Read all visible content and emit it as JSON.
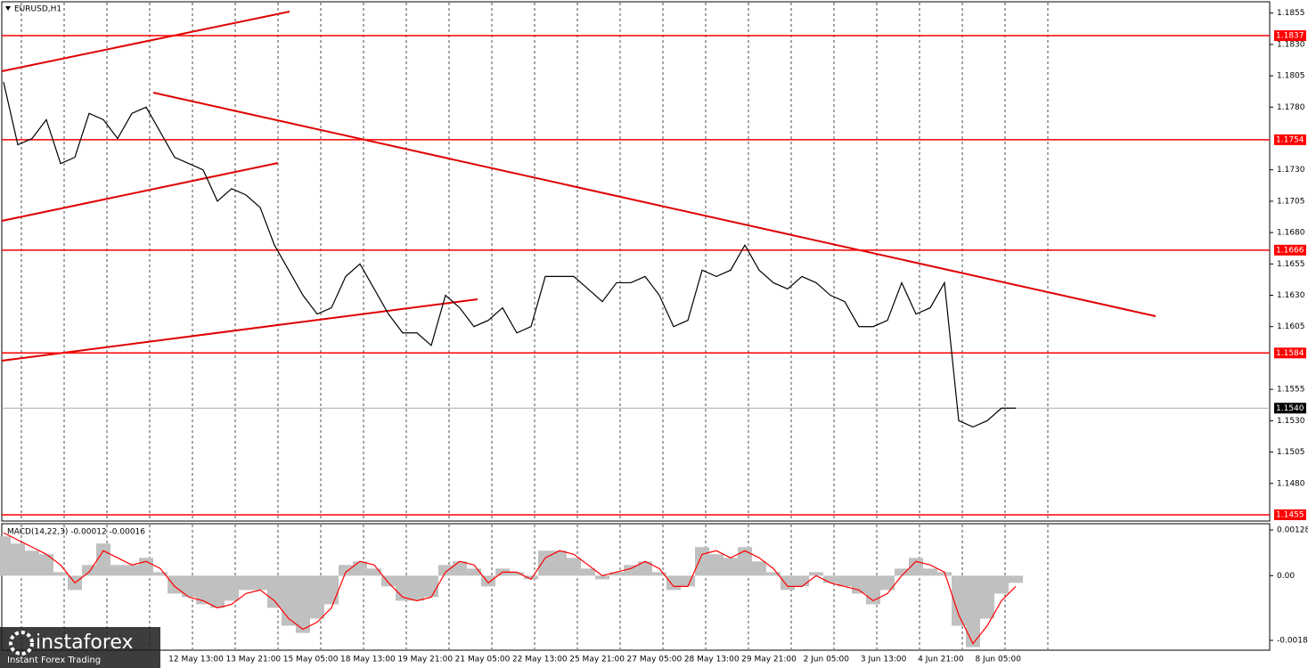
{
  "chart_data": [
    {
      "type": "line",
      "title": "EURUSD,H1",
      "color": "#000000",
      "values": [
        1.18,
        1.175,
        1.1755,
        1.177,
        1.1735,
        1.174,
        1.1775,
        1.177,
        1.1755,
        1.1775,
        1.178,
        1.176,
        1.174,
        1.1735,
        1.173,
        1.1705,
        1.1715,
        1.171,
        1.17,
        1.167,
        1.165,
        1.163,
        1.1615,
        1.162,
        1.1645,
        1.1655,
        1.1635,
        1.1615,
        1.16,
        1.16,
        1.159,
        1.163,
        1.162,
        1.1605,
        1.161,
        1.162,
        1.16,
        1.1605,
        1.1645,
        1.1645,
        1.1645,
        1.1635,
        1.1625,
        1.164,
        1.164,
        1.1645,
        1.163,
        1.1605,
        1.161,
        1.165,
        1.1645,
        1.165,
        1.167,
        1.165,
        1.164,
        1.1635,
        1.1645,
        1.164,
        1.163,
        1.1625,
        1.1605,
        1.1605,
        1.161,
        1.164,
        1.1615,
        1.162,
        1.164,
        1.153,
        1.1525,
        1.153,
        1.154,
        1.154
      ],
      "x_labels": [
        "12 May 13:00",
        "13 May 21:00",
        "15 May 05:00",
        "18 May 13:00",
        "19 May 21:00",
        "21 May 05:00",
        "22 May 13:00",
        "25 May 21:00",
        "27 May 05:00",
        "28 May 13:00",
        "29 May 21:00",
        "2 Jun 05:00",
        "3 Jun 13:00",
        "4 Jun 21:00",
        "8 Jun 05:00"
      ],
      "ylim": [
        1.145,
        1.1864
      ],
      "yticks": [
        1.1855,
        {
          "value": 1.183,
          "label": "1.1830"
        },
        1.1805,
        {
          "value": 1.178,
          "label": "1.1780"
        },
        {
          "value": 1.173,
          "label": "1.1730"
        },
        1.1705,
        {
          "value": 1.168,
          "label": "1.1680"
        },
        1.1655,
        {
          "value": 1.163,
          "label": "1.1630"
        },
        1.1605,
        1.1555,
        {
          "value": 1.153,
          "label": "1.1530"
        },
        1.1505,
        {
          "value": 1.148,
          "label": "1.1480"
        }
      ],
      "levels": [
        1.1837,
        1.1754,
        1.1666,
        1.1584,
        1.1455
      ],
      "level_color": "#ff0000",
      "last_price": {
        "value": 1.154,
        "label": "1.1540"
      },
      "grid": true
    },
    {
      "type": "bar",
      "title": "MACD(14,22,3) -0.00012 -0.00016",
      "color": "#c0c0c0",
      "values": [
        0.0011,
        0.0009,
        0.0007,
        0.0006,
        0.0001,
        -0.0004,
        0.0003,
        0.0009,
        0.0003,
        0.0003,
        0.0005,
        0.0001,
        -0.0005,
        -0.0006,
        -0.0008,
        -0.0009,
        -0.0007,
        -0.0004,
        -0.0004,
        -0.0009,
        -0.0014,
        -0.0016,
        -0.0012,
        -0.0008,
        0.0003,
        0.0004,
        0.0002,
        -0.0003,
        -0.0007,
        -0.0007,
        -0.0006,
        0.0003,
        0.0004,
        0.0002,
        -0.0003,
        0.0002,
        0.0001,
        -0.0001,
        0.0007,
        0.0007,
        0.0005,
        0.0002,
        -0.0001,
        0.0001,
        0.0003,
        0.0004,
        0.0001,
        -0.0004,
        -0.0003,
        0.0008,
        0.0006,
        0.0005,
        0.0008,
        0.0004,
        0.0001,
        -0.0004,
        -0.0003,
        0.0001,
        -0.0002,
        -0.0003,
        -0.0005,
        -0.0008,
        -0.0004,
        0.0002,
        0.0005,
        0.0002,
        0.0001,
        -0.0014,
        -0.002,
        -0.0012,
        -0.0005,
        -0.0002
      ],
      "signal": {
        "color": "#ff0000",
        "values": [
          0.0012,
          0.001,
          0.0008,
          0.0006,
          0.0003,
          -0.0002,
          0.0001,
          0.0007,
          0.0005,
          0.0003,
          0.0004,
          0.0002,
          -0.0003,
          -0.0006,
          -0.0007,
          -0.0009,
          -0.0008,
          -0.0005,
          -0.0004,
          -0.0007,
          -0.0012,
          -0.0015,
          -0.0013,
          -0.0009,
          0.0001,
          0.0004,
          0.0003,
          -0.0002,
          -0.0006,
          -0.0007,
          -0.0006,
          0.0001,
          0.0004,
          0.0003,
          -0.0002,
          0.0001,
          0.0001,
          -0.0001,
          0.0005,
          0.0007,
          0.0006,
          0.0003,
          0.0,
          0.0001,
          0.0002,
          0.0004,
          0.0002,
          -0.0003,
          -0.0003,
          0.0006,
          0.0007,
          0.0005,
          0.0007,
          0.0005,
          0.0002,
          -0.0003,
          -0.0003,
          0.0,
          -0.0002,
          -0.0003,
          -0.0004,
          -0.0007,
          -0.0005,
          0.0,
          0.0004,
          0.0003,
          0.0001,
          -0.0011,
          -0.0019,
          -0.0014,
          -0.0007,
          -0.0003
        ]
      },
      "ylim": [
        -0.00206,
        0.00143
      ],
      "yticks": [
        0.00128,
        {
          "value": 0,
          "label": "0.00"
        },
        -0.00181
      ]
    }
  ],
  "logo": {
    "brand": "instaforex",
    "tagline": "Instant Forex Trading"
  }
}
